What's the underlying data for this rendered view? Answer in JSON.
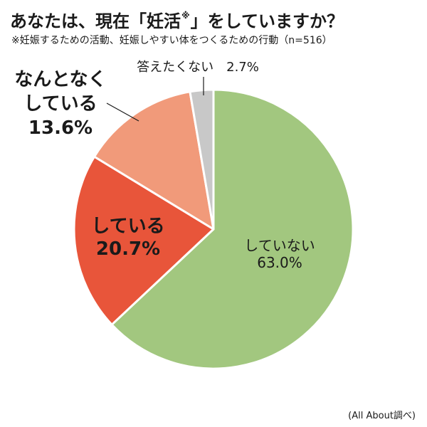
{
  "header": {
    "title_prefix": "あなたは、現在「妊活",
    "title_mark": "※",
    "title_suffix": "」をしていますか？",
    "subtitle": "※妊娠するための活動、妊娠しやすい体をつくるための行動（n=516）"
  },
  "chart_data": {
    "type": "pie",
    "title": "あなたは、現在「妊活※」をしていますか？",
    "subtitle": "※妊娠するための活動、妊娠しやすい体をつくるための行動（n=516）",
    "start_angle_deg": 0,
    "direction": "clockwise",
    "slices": [
      {
        "label": "していない",
        "value": 63.0,
        "value_label": "63.0%",
        "color": "#a2c77f",
        "label_color": "#1a1a1a",
        "label_weight": "normal"
      },
      {
        "label": "している",
        "value": 20.7,
        "value_label": "20.7%",
        "color": "#e8553a",
        "label_color": "#1a1a1a",
        "label_weight": "bold"
      },
      {
        "label": "なんとなくしている",
        "label_lines": [
          "なんとなく",
          "している"
        ],
        "value": 13.6,
        "value_label": "13.6%",
        "color": "#f19a7a",
        "label_color": "#1a1a1a",
        "label_weight": "bold"
      },
      {
        "label": "答えたくない",
        "value": 2.7,
        "value_label": "2.7%",
        "color": "#c8c8c8",
        "label_color": "#1a1a1a",
        "label_weight": "normal"
      }
    ]
  },
  "footer": {
    "source": "(All About調べ)"
  }
}
